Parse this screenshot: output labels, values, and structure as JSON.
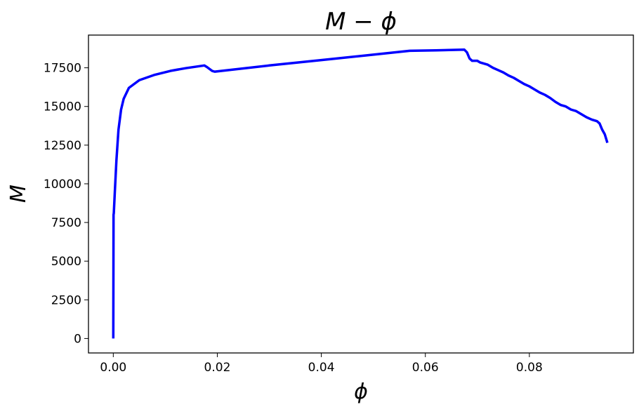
{
  "chart_data": {
    "type": "line",
    "title": "M − ϕ",
    "x_label": "ϕ",
    "y_label": "M",
    "x": [
      0,
      5e-05,
      0.0001,
      0.0003,
      0.0006,
      0.001,
      0.0015,
      0.002,
      0.003,
      0.005,
      0.008,
      0.011,
      0.014,
      0.0175,
      0.018,
      0.019,
      0.0195,
      0.03,
      0.04,
      0.05,
      0.057,
      0.062,
      0.0675,
      0.068,
      0.0685,
      0.069,
      0.07,
      0.0705,
      0.072,
      0.073,
      0.074,
      0.075,
      0.076,
      0.077,
      0.078,
      0.079,
      0.08,
      0.081,
      0.082,
      0.083,
      0.084,
      0.085,
      0.086,
      0.087,
      0.088,
      0.089,
      0.09,
      0.091,
      0.092,
      0.093,
      0.0935,
      0.094,
      0.0945,
      0.095
    ],
    "series": [
      {
        "name": "M",
        "color": "#0000ff",
        "values": [
          0,
          8000,
          8100,
          9500,
          11500,
          13500,
          14800,
          15500,
          16200,
          16700,
          17050,
          17300,
          17480,
          17650,
          17550,
          17300,
          17250,
          17650,
          18000,
          18350,
          18600,
          18630,
          18670,
          18500,
          18100,
          17950,
          17950,
          17850,
          17700,
          17500,
          17350,
          17200,
          17000,
          16850,
          16650,
          16450,
          16300,
          16100,
          15900,
          15750,
          15550,
          15300,
          15100,
          15000,
          14800,
          14700,
          14500,
          14300,
          14150,
          14050,
          13900,
          13500,
          13200,
          12650
        ]
      }
    ],
    "xlim": [
      -0.00477,
      0.1
    ],
    "ylim": [
      -934,
      19614
    ],
    "xticks": [
      {
        "value": 0,
        "label": "0.00"
      },
      {
        "value": 0.02,
        "label": "0.02"
      },
      {
        "value": 0.04,
        "label": "0.04"
      },
      {
        "value": 0.06,
        "label": "0.06"
      },
      {
        "value": 0.08,
        "label": "0.08"
      }
    ],
    "yticks": [
      0,
      2500,
      5000,
      7500,
      10000,
      12500,
      15000,
      17500
    ]
  }
}
